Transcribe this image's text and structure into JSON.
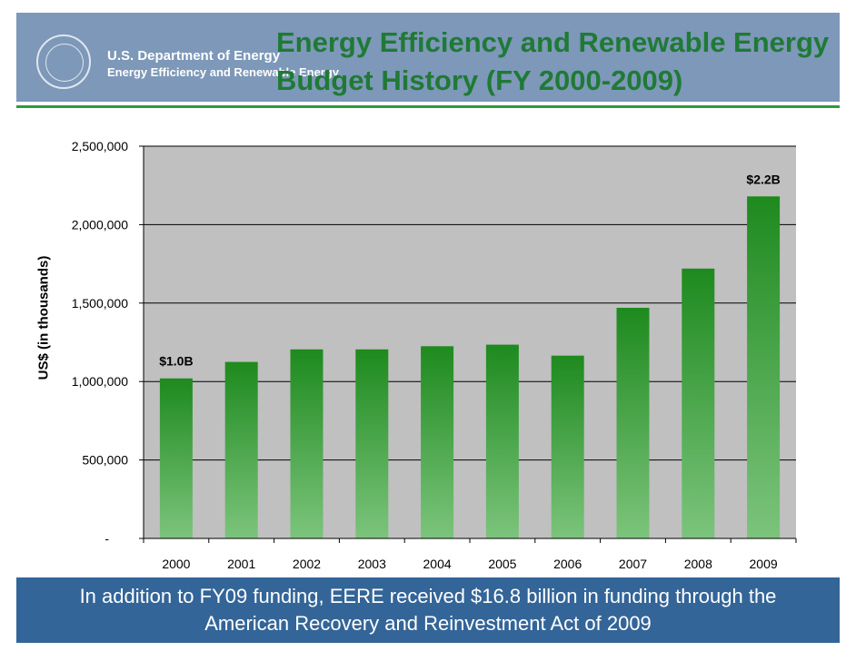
{
  "header": {
    "org_line1": "U.S. Department of Energy",
    "org_line2": "Energy Efficiency and Renewable Energy",
    "title_line1": "Energy Efficiency and Renewable Energy",
    "title_line2": "Budget History (FY 2000-2009)"
  },
  "footer": {
    "line1": "In addition to FY09 funding, EERE received $16.8 billion in funding through the",
    "line2": "American Recovery and Reinvestment Act of 2009"
  },
  "colors": {
    "header_bg": "#7d98b8",
    "title_green": "#1f7a35",
    "footer_bg": "#336598",
    "plot_bg": "#c0c0c0",
    "bar_top": "#1e8a1e",
    "bar_bottom": "#7cc47c"
  },
  "icons": [
    "doe-seal-icon"
  ],
  "chart_data": {
    "type": "bar",
    "title": "",
    "xlabel": "",
    "ylabel": "US$ (in thousands)",
    "categories": [
      "2000",
      "2001",
      "2002",
      "2003",
      "2004",
      "2005",
      "2006",
      "2007",
      "2008",
      "2009"
    ],
    "values": [
      1020000,
      1125000,
      1205000,
      1205000,
      1225000,
      1235000,
      1165000,
      1470000,
      1720000,
      2180000
    ],
    "ylim": [
      0,
      2500000
    ],
    "yticks": [
      0,
      500000,
      1000000,
      1500000,
      2000000,
      2500000
    ],
    "ytick_labels": [
      "-",
      "500,000",
      "1,000,000",
      "1,500,000",
      "2,000,000",
      "2,500,000"
    ],
    "annotations": [
      {
        "category": "2000",
        "text": "$1.0B"
      },
      {
        "category": "2009",
        "text": "$2.2B"
      }
    ],
    "grid": true,
    "legend": "none"
  }
}
